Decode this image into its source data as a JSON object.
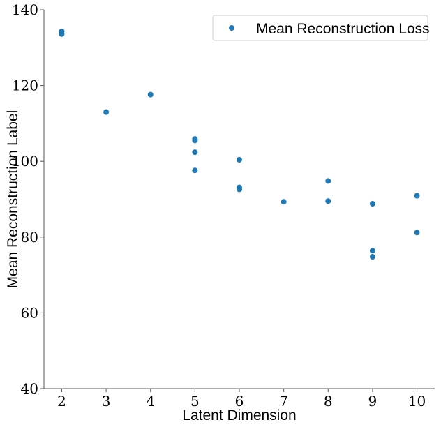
{
  "chart_data": {
    "type": "scatter",
    "xlabel": "Latent Dimension",
    "ylabel": "Mean Reconstruction Label",
    "xlim": [
      1.6,
      10.4
    ],
    "ylim": [
      40,
      140
    ],
    "xticks": [
      2,
      3,
      4,
      5,
      6,
      7,
      8,
      9,
      10
    ],
    "yticks": [
      40,
      60,
      80,
      100,
      120,
      140
    ],
    "grid": false,
    "legend_position": "top-right",
    "series": [
      {
        "name": "Mean Reconstruction Loss",
        "color": "#1f77b4",
        "points": [
          {
            "x": 2,
            "y": 134.3
          },
          {
            "x": 2,
            "y": 133.6
          },
          {
            "x": 3,
            "y": 113.0
          },
          {
            "x": 4,
            "y": 117.6
          },
          {
            "x": 5,
            "y": 105.9
          },
          {
            "x": 5,
            "y": 105.5
          },
          {
            "x": 5,
            "y": 102.4
          },
          {
            "x": 5,
            "y": 97.6
          },
          {
            "x": 6,
            "y": 100.4
          },
          {
            "x": 6,
            "y": 93.1
          },
          {
            "x": 6,
            "y": 92.6
          },
          {
            "x": 7,
            "y": 89.3
          },
          {
            "x": 8,
            "y": 94.8
          },
          {
            "x": 8,
            "y": 89.5
          },
          {
            "x": 9,
            "y": 88.8
          },
          {
            "x": 9,
            "y": 76.4
          },
          {
            "x": 9,
            "y": 74.8
          },
          {
            "x": 10,
            "y": 90.9
          },
          {
            "x": 10,
            "y": 81.2
          }
        ]
      }
    ]
  }
}
